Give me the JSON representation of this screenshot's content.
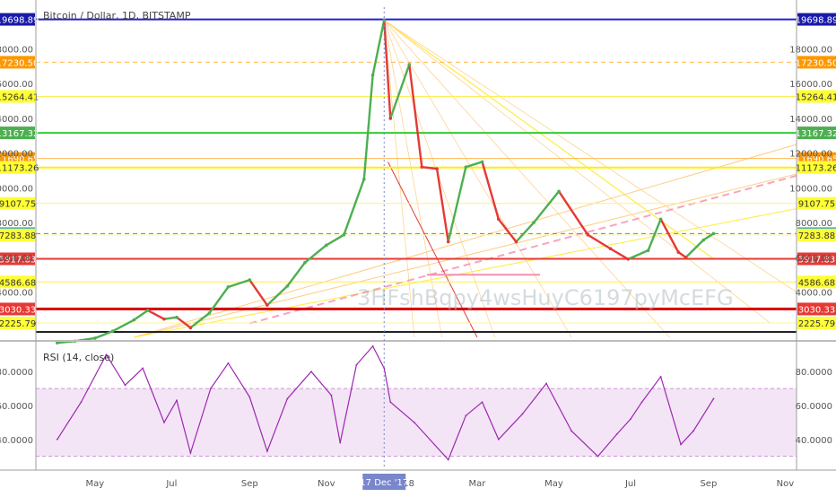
{
  "symbol_header": "Bitcoin / Dollar, 1D, BITSTAMP",
  "rsi_header": "RSI (14, close)",
  "colors": {
    "up": "#4caf50",
    "down": "#e53935",
    "rsi_line": "#9c27b0",
    "rsi_band": "#f3e5f5",
    "fan_yellow": "#ffeb3b",
    "fan_orange": "#ffcc80",
    "trend_red": "#e53935",
    "pink_dash": "#f48fb1"
  },
  "price_axis": {
    "ticks": [
      "18000.00",
      "16000.00",
      "14000.00",
      "12000.00",
      "10000.00",
      "8000.00",
      "6000.00",
      "4000.00"
    ],
    "tick_values": [
      18000,
      16000,
      14000,
      12000,
      10000,
      8000,
      6000,
      4000
    ]
  },
  "levels": [
    {
      "label": "19698.89",
      "value": 19698.89,
      "bg": "#1a1aaa",
      "fg": "#ffffff",
      "line": "#2222cc",
      "width": 2,
      "dash": false
    },
    {
      "label": "17230.50",
      "value": 17230.5,
      "bg": "#ff9800",
      "fg": "#ffffff",
      "line": "#ffb74d",
      "width": 1,
      "dash": true
    },
    {
      "label": "15264.41",
      "value": 15264.41,
      "bg": "#ffff33",
      "fg": "#333333",
      "line": "#ffee58",
      "width": 1,
      "dash": false
    },
    {
      "label": "13167.32",
      "value": 13167.32,
      "bg": "#4caf50",
      "fg": "#ffffff",
      "line": "#33cc33",
      "width": 2,
      "dash": false
    },
    {
      "label": "11690.65",
      "value": 11690.65,
      "bg": "#ff9800",
      "fg": "#ffffff",
      "line": "#ffb74d",
      "width": 1,
      "dash": false
    },
    {
      "label": "11173.26",
      "value": 11173.26,
      "bg": "#ffff33",
      "fg": "#333333",
      "line": "#ffee00",
      "width": 2,
      "dash": false
    },
    {
      "label": "9107.75",
      "value": 9107.75,
      "bg": "#ffff33",
      "fg": "#333333",
      "line": "#fff176",
      "width": 1,
      "dash": false
    },
    {
      "label": "7372.86",
      "value": 7372.86,
      "bg": "#4db6ac",
      "fg": "#ffffff",
      "line": "#26a69a",
      "width": 1,
      "dash": true
    },
    {
      "label": "7283.88",
      "value": 7283.88,
      "bg": "#ffff33",
      "fg": "#333333",
      "line": "#fff59d",
      "width": 1,
      "dash": false
    },
    {
      "label": "5917.83",
      "value": 5917.83,
      "bg": "#e53935",
      "fg": "#ffffff",
      "line": "#e53935",
      "width": 2,
      "dash": false
    },
    {
      "label": "4586.68",
      "value": 4586.68,
      "bg": "#ffff33",
      "fg": "#333333",
      "line": "#ffee58",
      "width": 1,
      "dash": false
    },
    {
      "label": "3030.33",
      "value": 3030.33,
      "bg": "#e53935",
      "fg": "#ffffff",
      "line": "#d50000",
      "width": 3,
      "dash": false
    },
    {
      "label": "2225.79",
      "value": 2225.79,
      "bg": "#ffff33",
      "fg": "#333333",
      "line": "#fff59d",
      "width": 1,
      "dash": false
    }
  ],
  "rsi_axis": {
    "ticks": [
      "80.0000",
      "60.0000",
      "40.0000"
    ],
    "tick_values": [
      80,
      60,
      40
    ]
  },
  "time_axis": {
    "labels": [
      "May",
      "Jul",
      "Sep",
      "Nov",
      "2018",
      "Mar",
      "May",
      "Jul",
      "Sep",
      "Nov"
    ],
    "highlight_labels": [
      "17 Dec '17"
    ]
  },
  "overlay_watermark": "3HFshBqpy4wsHuyC6197pyMcEFG",
  "chart_data": {
    "type": "line",
    "title": "Bitcoin / Dollar, 1D, BITSTAMP",
    "series": [
      {
        "name": "Bitcoin / Dollar",
        "x": [
          "2017-04-01",
          "2017-04-15",
          "2017-05-01",
          "2017-05-15",
          "2017-06-01",
          "2017-06-12",
          "2017-06-25",
          "2017-07-05",
          "2017-07-16",
          "2017-07-31",
          "2017-08-15",
          "2017-09-01",
          "2017-09-15",
          "2017-10-01",
          "2017-10-15",
          "2017-11-01",
          "2017-11-15",
          "2017-12-01",
          "2017-12-08",
          "2017-12-17",
          "2017-12-22",
          "2018-01-06",
          "2018-01-16",
          "2018-01-28",
          "2018-02-06",
          "2018-02-20",
          "2018-03-05",
          "2018-03-18",
          "2018-04-01",
          "2018-04-15",
          "2018-05-05",
          "2018-05-28",
          "2018-06-15",
          "2018-06-29",
          "2018-07-15",
          "2018-07-25",
          "2018-08-08",
          "2018-08-14",
          "2018-08-28",
          "2018-09-05"
        ],
        "values": [
          1080,
          1180,
          1350,
          1750,
          2400,
          2950,
          2450,
          2550,
          1950,
          2800,
          4300,
          4700,
          3250,
          4350,
          5700,
          6700,
          7300,
          10500,
          16500,
          19650,
          14000,
          17100,
          11200,
          11100,
          6900,
          11200,
          11500,
          8200,
          6900,
          8000,
          9800,
          7300,
          6500,
          5900,
          6400,
          8200,
          6300,
          6000,
          7000,
          7372.86
        ]
      }
    ],
    "rsi": {
      "name": "RSI (14, close)",
      "x": [
        "2017-04-01",
        "2017-04-20",
        "2017-05-10",
        "2017-05-25",
        "2017-06-08",
        "2017-06-25",
        "2017-07-05",
        "2017-07-16",
        "2017-08-01",
        "2017-08-15",
        "2017-09-01",
        "2017-09-15",
        "2017-10-01",
        "2017-10-20",
        "2017-11-05",
        "2017-11-12",
        "2017-11-25",
        "2017-12-08",
        "2017-12-17",
        "2017-12-22",
        "2018-01-10",
        "2018-02-06",
        "2018-02-20",
        "2018-03-05",
        "2018-03-18",
        "2018-04-06",
        "2018-04-25",
        "2018-05-15",
        "2018-06-05",
        "2018-06-20",
        "2018-07-01",
        "2018-07-10",
        "2018-07-25",
        "2018-08-10",
        "2018-08-20",
        "2018-09-05"
      ],
      "values": [
        40,
        62,
        90,
        72,
        82,
        50,
        63,
        32,
        70,
        85,
        65,
        33,
        64,
        80,
        66,
        38,
        84,
        95,
        82,
        62,
        50,
        28,
        54,
        62,
        40,
        55,
        73,
        45,
        30,
        43,
        52,
        62,
        77,
        37,
        45,
        64
      ]
    },
    "ylim": [
      1400,
      20400
    ],
    "rsi_ylim": [
      24,
      96
    ],
    "xlim": [
      "2017-03-15",
      "2018-11-10"
    ],
    "log_scale": false,
    "grid": false
  }
}
